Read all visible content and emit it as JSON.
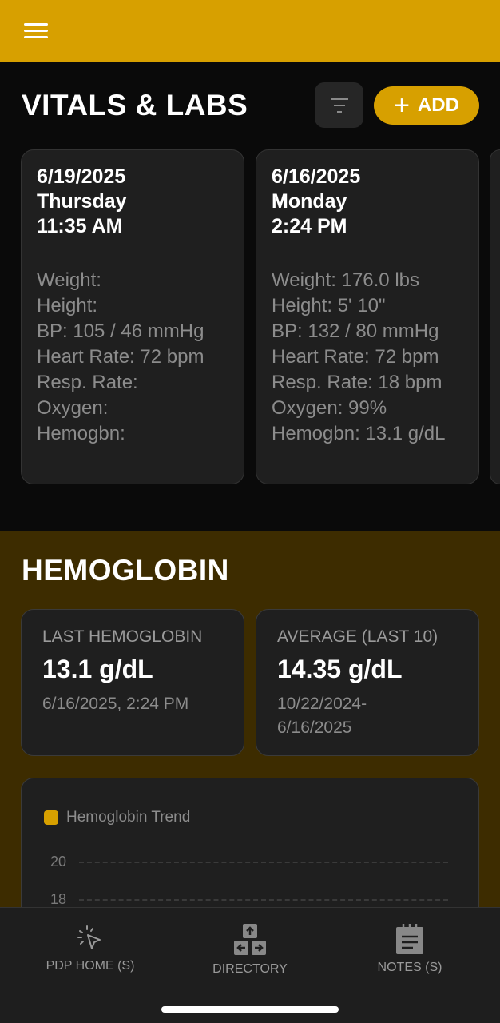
{
  "header": {
    "menu_icon": "hamburger-icon",
    "accent": "#d7a000"
  },
  "vitals": {
    "title": "VITALS & LABS",
    "filter_icon": "filter-icon",
    "add_label": "ADD",
    "cards": [
      {
        "date": "6/19/2025",
        "day": "Thursday",
        "time": "11:35 AM",
        "rows": [
          "Weight:",
          "Height:",
          "BP: 105 / 46 mmHg",
          "Heart Rate: 72 bpm",
          "Resp. Rate:",
          "Oxygen:",
          "Hemogbn:"
        ]
      },
      {
        "date": "6/16/2025",
        "day": "Monday",
        "time": "2:24 PM",
        "rows": [
          "Weight: 176.0 lbs",
          "Height: 5' 10\"",
          "BP: 132 / 80 mmHg",
          "Heart Rate: 72 bpm",
          "Resp. Rate: 18 bpm",
          "Oxygen: 99%",
          "Hemogbn: 13.1 g/dL"
        ]
      }
    ]
  },
  "hemoglobin": {
    "title": "HEMOGLOBIN",
    "last": {
      "label": "LAST HEMOGLOBIN",
      "value": "13.1 g/dL",
      "sub": "6/16/2025, 2:24 PM"
    },
    "average": {
      "label": "AVERAGE (LAST 10)",
      "value": "14.35 g/dL",
      "sub1": "10/22/2024-",
      "sub2": "6/16/2025"
    }
  },
  "chart_data": {
    "type": "line",
    "legend": [
      {
        "name": "Hemoglobin Trend",
        "color": "#d7a000"
      }
    ],
    "yticks": [
      "20",
      "18"
    ],
    "grid": true,
    "legend_placement": "top-left"
  },
  "nav": [
    {
      "label": "PDP HOME (S)",
      "icon": "cursor-click-icon"
    },
    {
      "label": "DIRECTORY",
      "icon": "arrow-keys-icon"
    },
    {
      "label": "NOTES (S)",
      "icon": "notepad-icon"
    }
  ]
}
